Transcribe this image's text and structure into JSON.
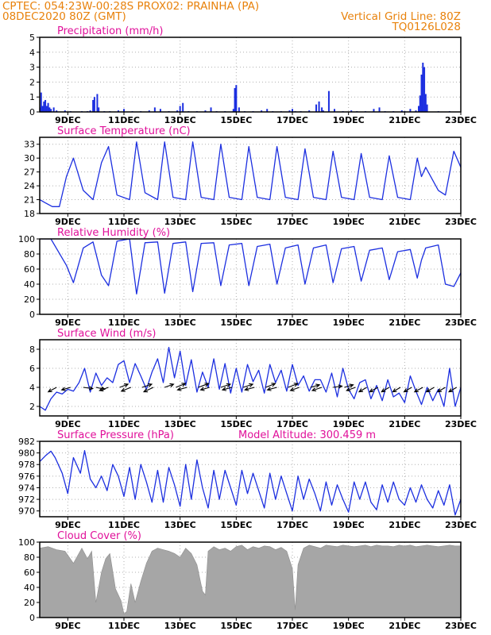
{
  "header": {
    "line1_left": "CPTEC:   054:23W-00:28S   PROX02: PRAINHA (PA)",
    "line2_left": "08DEC2020 80Z (GMT)",
    "line2_right": "Vertical Grid Line: 80Z",
    "line3_right": "TQ0126L028"
  },
  "colors": {
    "header_text": "#e8820c",
    "panel_title": "#e0109a",
    "series": "#1c2fe0",
    "cloud_fill": "#a6a6a6",
    "wind_arrow": "#000000",
    "grid": "#b0b0b0"
  },
  "x_axis": {
    "range_days": [
      8,
      23
    ],
    "tick_days": [
      9,
      11,
      13,
      15,
      17,
      19,
      21,
      23
    ],
    "tick_labels": [
      "9DEC",
      "11DEC",
      "13DEC",
      "15DEC",
      "17DEC",
      "19DEC",
      "21DEC",
      "23DEC"
    ]
  },
  "chart_data": [
    {
      "id": "precip",
      "type": "bar",
      "title": "Precipitation (mm/h)",
      "ylim": [
        0,
        5
      ],
      "yticks": [
        0,
        1,
        2,
        3,
        4,
        5
      ],
      "grid": true,
      "x_unit": "day of December 2020 (fractional)",
      "x": [
        8.0,
        8.05,
        8.1,
        8.15,
        8.2,
        8.25,
        8.3,
        8.35,
        8.4,
        8.5,
        8.6,
        8.9,
        9.1,
        9.5,
        9.7,
        9.8,
        9.9,
        9.95,
        10.05,
        10.1,
        10.3,
        10.5,
        10.8,
        11.0,
        11.3,
        11.6,
        11.9,
        12.1,
        12.3,
        12.6,
        12.9,
        13.0,
        13.1,
        13.3,
        13.6,
        13.9,
        14.1,
        14.3,
        14.6,
        14.9,
        14.95,
        15.0,
        15.1,
        15.3,
        15.6,
        15.9,
        16.1,
        16.3,
        16.6,
        16.9,
        17.0,
        17.1,
        17.3,
        17.6,
        17.85,
        17.95,
        18.05,
        18.1,
        18.3,
        18.5,
        18.8,
        19.1,
        19.3,
        19.6,
        19.9,
        20.1,
        20.3,
        20.6,
        20.9,
        21.0,
        21.2,
        21.4,
        21.5,
        21.55,
        21.6,
        21.65,
        21.7,
        21.75,
        21.8,
        22.2,
        22.6
      ],
      "values": [
        0.3,
        1.3,
        0.4,
        0.7,
        0.8,
        0.4,
        0.6,
        0.3,
        0.2,
        0.3,
        0.1,
        0.1,
        0.05,
        0.05,
        0.05,
        0.1,
        0.8,
        1.0,
        1.2,
        0.3,
        0.05,
        0.05,
        0.1,
        0.2,
        0.05,
        0.05,
        0.1,
        0.3,
        0.2,
        0.05,
        0.1,
        0.4,
        0.6,
        0.05,
        0.05,
        0.1,
        0.3,
        0.05,
        0.05,
        0.2,
        1.6,
        1.8,
        0.3,
        0.05,
        0.05,
        0.1,
        0.2,
        0.05,
        0.05,
        0.1,
        0.2,
        0.05,
        0.05,
        0.1,
        0.5,
        0.7,
        0.3,
        0.1,
        1.4,
        0.2,
        0.05,
        0.1,
        0.05,
        0.05,
        0.2,
        0.3,
        0.05,
        0.05,
        0.1,
        0.05,
        0.2,
        0.1,
        0.4,
        1.1,
        2.5,
        3.3,
        3.0,
        1.2,
        0.5,
        0.05,
        0.05
      ]
    },
    {
      "id": "temp",
      "type": "line",
      "title": "Surface Temperature (nC)",
      "ylim": [
        18,
        34.5
      ],
      "yticks": [
        18,
        21,
        24,
        27,
        30,
        33
      ],
      "grid": true,
      "series": [
        {
          "x": [
            8.0,
            8.2,
            8.45,
            8.7,
            8.95,
            9.2,
            9.55,
            9.9,
            10.2,
            10.45,
            10.75,
            11.2,
            11.45,
            11.75,
            12.2,
            12.45,
            12.75,
            13.2,
            13.45,
            13.75,
            14.2,
            14.45,
            14.75,
            15.2,
            15.45,
            15.75,
            16.2,
            16.45,
            16.75,
            17.2,
            17.45,
            17.75,
            18.2,
            18.45,
            18.75,
            19.2,
            19.45,
            19.75,
            20.2,
            20.45,
            20.75,
            21.2,
            21.45,
            21.6,
            21.75,
            22.2,
            22.45,
            22.75,
            23.0
          ],
          "y": [
            21,
            20.3,
            19.5,
            19.5,
            26,
            30,
            23,
            21,
            29,
            32.5,
            22,
            21,
            33.5,
            22.5,
            21,
            33.5,
            21.5,
            21,
            33.5,
            21.5,
            21,
            33,
            21.5,
            21,
            32.5,
            21.5,
            21,
            32.5,
            21.5,
            21,
            32,
            21.5,
            21,
            31.5,
            21.5,
            21,
            31,
            21.5,
            21,
            30.5,
            21.5,
            21,
            30,
            26,
            28,
            23,
            22,
            31.5,
            28
          ]
        }
      ]
    },
    {
      "id": "rh",
      "type": "line",
      "title": "Relative Humidity (%)",
      "ylim": [
        0,
        100
      ],
      "yticks": [
        0,
        20,
        40,
        60,
        80,
        100
      ],
      "grid": true,
      "series": [
        {
          "x": [
            8.0,
            8.4,
            8.95,
            9.2,
            9.55,
            9.9,
            10.2,
            10.45,
            10.75,
            11.2,
            11.45,
            11.75,
            12.2,
            12.45,
            12.75,
            13.2,
            13.45,
            13.75,
            14.2,
            14.45,
            14.75,
            15.2,
            15.45,
            15.75,
            16.2,
            16.45,
            16.75,
            17.2,
            17.45,
            17.75,
            18.2,
            18.45,
            18.75,
            19.2,
            19.45,
            19.75,
            20.2,
            20.45,
            20.75,
            21.2,
            21.45,
            21.6,
            21.75,
            22.2,
            22.45,
            22.75,
            23.0
          ],
          "y": [
            100,
            100,
            65,
            42,
            88,
            96,
            52,
            38,
            97,
            100,
            27,
            95,
            96,
            28,
            94,
            96,
            30,
            94,
            95,
            38,
            92,
            94,
            38,
            90,
            93,
            40,
            88,
            92,
            40,
            88,
            92,
            42,
            87,
            90,
            44,
            85,
            88,
            46,
            83,
            86,
            48,
            72,
            88,
            92,
            40,
            37,
            55
          ]
        }
      ]
    },
    {
      "id": "wind",
      "type": "line",
      "title": "Surface Wind (m/s)",
      "ylim": [
        1,
        9
      ],
      "yticks": [
        2,
        4,
        6,
        8
      ],
      "grid": true,
      "series": [
        {
          "x": [
            8.0,
            8.2,
            8.4,
            8.6,
            8.8,
            9.0,
            9.2,
            9.4,
            9.6,
            9.8,
            10.0,
            10.2,
            10.4,
            10.6,
            10.8,
            11.0,
            11.2,
            11.4,
            11.6,
            11.8,
            12.0,
            12.2,
            12.4,
            12.6,
            12.8,
            13.0,
            13.2,
            13.4,
            13.6,
            13.8,
            14.0,
            14.2,
            14.4,
            14.6,
            14.8,
            15.0,
            15.2,
            15.4,
            15.6,
            15.8,
            16.0,
            16.2,
            16.4,
            16.6,
            16.8,
            17.0,
            17.2,
            17.4,
            17.6,
            17.8,
            18.0,
            18.2,
            18.4,
            18.6,
            18.8,
            19.0,
            19.2,
            19.4,
            19.6,
            19.8,
            20.0,
            20.2,
            20.4,
            20.6,
            20.8,
            21.0,
            21.2,
            21.4,
            21.6,
            21.8,
            22.0,
            22.2,
            22.4,
            22.6,
            22.8,
            23.0
          ],
          "y": [
            2,
            1.6,
            2.8,
            3.5,
            3.3,
            3.8,
            3.6,
            4.5,
            6.0,
            3.5,
            5.5,
            4.2,
            5.0,
            4.5,
            6.4,
            6.8,
            4.5,
            6.5,
            5.2,
            3.8,
            5.6,
            7.0,
            4.5,
            8.2,
            5.0,
            7.8,
            4.2,
            6.9,
            3.5,
            5.6,
            4.0,
            7.0,
            3.8,
            6.5,
            3.4,
            6.0,
            3.5,
            6.4,
            4.6,
            5.8,
            3.4,
            6.4,
            4.5,
            5.8,
            3.6,
            6.4,
            4.2,
            5.2,
            3.6,
            4.8,
            4.8,
            3.5,
            5.5,
            3.0,
            6.0,
            3.8,
            2.8,
            4.5,
            4.8,
            2.8,
            4.2,
            2.6,
            4.8,
            3.0,
            3.4,
            2.4,
            5.2,
            3.6,
            2.2,
            4.0,
            2.6,
            3.8,
            2.0,
            6.0,
            2.0,
            4.0
          ]
        }
      ],
      "wind_arrows": {
        "speed_level": 4,
        "x": [
          8.6,
          9.1,
          9.55,
          10.0,
          10.45,
          10.85,
          11.25,
          11.65,
          12.05,
          12.45,
          12.85,
          13.25,
          13.65,
          14.05,
          14.45,
          14.85,
          15.25,
          15.65,
          16.05,
          16.45,
          16.85,
          17.25,
          17.65,
          18.05,
          18.45,
          18.85,
          19.25,
          19.65,
          20.05,
          20.45,
          20.85,
          21.25,
          21.65,
          22.05,
          22.45,
          22.85
        ],
        "u": [
          -1.3,
          -1.4,
          1.5,
          1.4,
          -1.4,
          1.3,
          -1.5,
          1.5,
          -1.5,
          1.4,
          1.5,
          -1.5,
          1.6,
          -1.4,
          1.5,
          -1.5,
          1.5,
          -1.5,
          1.5,
          -1.5,
          1.5,
          -1.4,
          1.4,
          -1.5,
          1.4,
          1.4,
          -1.4,
          -1.2,
          -1.3,
          -1.2,
          -1.2,
          -1.2,
          -1.3,
          -1.2,
          -1.2,
          -1.2
        ],
        "v": [
          -0.7,
          -0.4,
          -0.2,
          -0.3,
          -0.5,
          0.5,
          -0.6,
          0.5,
          -0.7,
          0.5,
          0.6,
          -0.4,
          0.6,
          -0.4,
          0.5,
          -0.4,
          0.5,
          -0.4,
          0.6,
          -0.4,
          0.6,
          -0.5,
          0.4,
          -0.5,
          0.2,
          0.4,
          -0.5,
          -0.7,
          -0.7,
          -0.7,
          -0.7,
          -0.7,
          -0.7,
          -0.7,
          -0.7,
          -0.7
        ]
      }
    },
    {
      "id": "pres",
      "type": "line",
      "title": "Surface Pressure (hPa)",
      "annotation": "Model Altitude: 300.459 m",
      "ylim": [
        969,
        982
      ],
      "yticks": [
        970,
        972,
        974,
        976,
        978,
        980,
        982
      ],
      "grid": true,
      "series": [
        {
          "x": [
            8.0,
            8.2,
            8.4,
            8.55,
            8.8,
            9.0,
            9.2,
            9.45,
            9.6,
            9.8,
            10.0,
            10.2,
            10.4,
            10.6,
            10.8,
            11.0,
            11.2,
            11.4,
            11.6,
            11.8,
            12.0,
            12.2,
            12.4,
            12.6,
            12.8,
            13.0,
            13.2,
            13.4,
            13.6,
            13.8,
            14.0,
            14.2,
            14.4,
            14.6,
            14.8,
            15.0,
            15.2,
            15.4,
            15.6,
            15.8,
            16.0,
            16.2,
            16.4,
            16.6,
            16.8,
            17.0,
            17.2,
            17.4,
            17.6,
            17.8,
            18.0,
            18.2,
            18.4,
            18.6,
            18.8,
            19.0,
            19.2,
            19.4,
            19.6,
            19.8,
            20.0,
            20.2,
            20.4,
            20.6,
            20.8,
            21.0,
            21.2,
            21.4,
            21.6,
            21.8,
            22.0,
            22.2,
            22.4,
            22.6,
            22.8,
            23.0
          ],
          "y": [
            978.5,
            979.5,
            980.3,
            979.2,
            976.5,
            973.0,
            979.2,
            976.5,
            980.4,
            975.5,
            974.0,
            976.0,
            973.5,
            978.0,
            976.0,
            972.5,
            977.5,
            972.0,
            978.0,
            975.0,
            971.5,
            977.0,
            971.5,
            977.5,
            974.5,
            970.8,
            978.0,
            972.0,
            978.8,
            974.0,
            970.5,
            977.0,
            972.0,
            977.0,
            974.0,
            971.0,
            977.0,
            973.0,
            976.5,
            973.5,
            970.5,
            976.5,
            972.0,
            976.0,
            973.0,
            970.0,
            976.0,
            972.0,
            975.5,
            973.0,
            970.0,
            975.0,
            971.0,
            974.5,
            972.0,
            969.8,
            975.0,
            972.0,
            975.0,
            971.5,
            970.2,
            974.5,
            971.5,
            975.0,
            972.0,
            971.0,
            974.0,
            971.5,
            974.5,
            972.0,
            970.5,
            973.5,
            971.0,
            974.5,
            969.3,
            972.0
          ]
        }
      ]
    },
    {
      "id": "cloud",
      "type": "area",
      "title": "Cloud Cover (%)",
      "ylim": [
        0,
        100
      ],
      "yticks": [
        0,
        20,
        40,
        60,
        80,
        100
      ],
      "grid": true,
      "series": [
        {
          "x": [
            8.0,
            8.3,
            8.6,
            8.9,
            9.2,
            9.5,
            9.7,
            9.85,
            10.0,
            10.2,
            10.35,
            10.5,
            10.7,
            10.9,
            11.0,
            11.1,
            11.25,
            11.4,
            11.6,
            11.8,
            12.0,
            12.2,
            12.4,
            12.6,
            12.8,
            13.0,
            13.2,
            13.4,
            13.6,
            13.8,
            13.9,
            14.0,
            14.2,
            14.4,
            14.6,
            14.8,
            15.0,
            15.2,
            15.4,
            15.6,
            15.8,
            16.0,
            16.2,
            16.4,
            16.6,
            16.8,
            17.0,
            17.1,
            17.2,
            17.4,
            17.6,
            17.8,
            18.0,
            18.2,
            18.4,
            18.6,
            18.8,
            19.0,
            19.2,
            19.4,
            19.6,
            19.8,
            20.0,
            20.2,
            20.4,
            20.6,
            20.8,
            21.0,
            21.2,
            21.4,
            21.6,
            21.8,
            22.0,
            22.2,
            22.4,
            22.6,
            22.8,
            23.0
          ],
          "y": [
            92,
            94,
            90,
            88,
            72,
            92,
            78,
            88,
            20,
            60,
            78,
            85,
            38,
            22,
            5,
            8,
            45,
            20,
            48,
            72,
            88,
            92,
            90,
            88,
            85,
            80,
            92,
            85,
            70,
            35,
            30,
            88,
            94,
            90,
            92,
            88,
            94,
            96,
            90,
            94,
            92,
            95,
            94,
            90,
            93,
            88,
            65,
            10,
            70,
            92,
            96,
            94,
            92,
            96,
            95,
            94,
            96,
            95,
            94,
            95,
            96,
            94,
            96,
            95,
            95,
            94,
            96,
            95,
            96,
            94,
            95,
            96,
            95,
            94,
            95,
            96,
            95,
            95
          ]
        }
      ]
    }
  ]
}
